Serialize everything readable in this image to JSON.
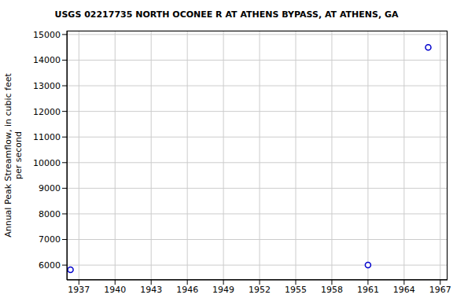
{
  "chart_data": {
    "type": "scatter",
    "title": "USGS 02217735 NORTH OCONEE R AT ATHENS BYPASS, AT ATHENS, GA",
    "y_label": "Annual Peak Streamflow, in cubic feet\nper second",
    "x": [
      1936.3,
      1961,
      1966
    ],
    "values": [
      5820,
      6000,
      14500
    ],
    "color": "#0000cc",
    "marker": "hollow_circle",
    "xlim": [
      1936,
      1967.6
    ],
    "xticks": [
      1937,
      1940,
      1943,
      1946,
      1949,
      1952,
      1955,
      1958,
      1961,
      1964,
      1967
    ],
    "ylim": [
      5420,
      15150
    ],
    "yticks": [
      6000,
      7000,
      8000,
      9000,
      10000,
      11000,
      12000,
      13000,
      14000,
      15000
    ],
    "grid": true
  }
}
